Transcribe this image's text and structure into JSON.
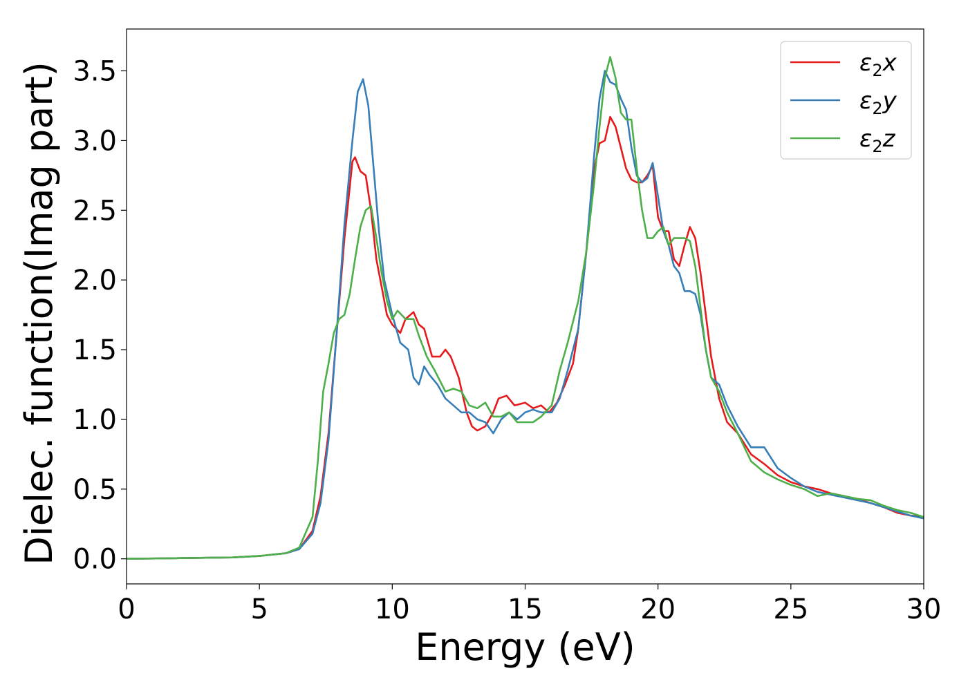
{
  "chart_data": {
    "type": "line",
    "xlabel": "Energy (eV)",
    "ylabel": "Dielec. function(Imag part)",
    "xlim": [
      0,
      30
    ],
    "ylim": [
      -0.18,
      3.8
    ],
    "xticks": [
      "0",
      "5",
      "10",
      "15",
      "20",
      "25",
      "30"
    ],
    "yticks": [
      "0.0",
      "0.5",
      "1.0",
      "1.5",
      "2.0",
      "2.5",
      "3.0",
      "3.5"
    ],
    "grid": false,
    "legend_position": "top-right",
    "series": [
      {
        "name": "ε₂x",
        "color": "#e41a1c",
        "x": [
          0,
          2,
          4,
          5,
          6,
          6.5,
          7,
          7.3,
          7.6,
          7.9,
          8.2,
          8.5,
          8.6,
          8.8,
          9.0,
          9.2,
          9.4,
          9.6,
          9.8,
          10.0,
          10.3,
          10.5,
          10.8,
          11.0,
          11.2,
          11.5,
          11.8,
          12.0,
          12.2,
          12.5,
          12.8,
          13.0,
          13.2,
          13.5,
          13.8,
          14.0,
          14.3,
          14.6,
          15.0,
          15.3,
          15.6,
          15.9,
          16.2,
          16.5,
          16.8,
          17.0,
          17.3,
          17.6,
          17.8,
          18.0,
          18.2,
          18.4,
          18.6,
          18.8,
          19.0,
          19.2,
          19.4,
          19.6,
          19.8,
          20.0,
          20.2,
          20.4,
          20.6,
          20.8,
          21.0,
          21.2,
          21.4,
          21.6,
          21.8,
          22.0,
          22.3,
          22.6,
          23.0,
          23.5,
          24.0,
          24.5,
          25.0,
          25.5,
          26.0,
          26.5,
          27.0,
          27.5,
          28.0,
          28.5,
          29.0,
          29.5,
          30.0
        ],
        "values": [
          0,
          0.005,
          0.01,
          0.02,
          0.04,
          0.07,
          0.2,
          0.45,
          0.9,
          1.6,
          2.3,
          2.85,
          2.88,
          2.78,
          2.75,
          2.5,
          2.15,
          1.95,
          1.75,
          1.68,
          1.62,
          1.72,
          1.77,
          1.68,
          1.65,
          1.45,
          1.45,
          1.5,
          1.45,
          1.3,
          1.05,
          0.95,
          0.92,
          0.95,
          1.05,
          1.15,
          1.17,
          1.1,
          1.12,
          1.08,
          1.1,
          1.05,
          1.12,
          1.25,
          1.4,
          1.65,
          2.2,
          2.8,
          2.98,
          3.0,
          3.17,
          3.1,
          2.95,
          2.8,
          2.72,
          2.7,
          2.7,
          2.75,
          2.82,
          2.45,
          2.35,
          2.35,
          2.15,
          2.1,
          2.25,
          2.38,
          2.3,
          2.05,
          1.75,
          1.45,
          1.15,
          0.98,
          0.9,
          0.75,
          0.68,
          0.6,
          0.55,
          0.52,
          0.5,
          0.47,
          0.45,
          0.43,
          0.4,
          0.37,
          0.33,
          0.31,
          0.3
        ]
      },
      {
        "name": "ε₂y",
        "color": "#377eb8",
        "x": [
          0,
          2,
          4,
          5,
          6,
          6.5,
          7,
          7.3,
          7.6,
          7.9,
          8.2,
          8.5,
          8.7,
          8.9,
          9.1,
          9.3,
          9.5,
          9.7,
          10.0,
          10.3,
          10.6,
          10.8,
          11.0,
          11.2,
          11.4,
          11.7,
          12.0,
          12.3,
          12.6,
          12.9,
          13.2,
          13.5,
          13.8,
          14.1,
          14.4,
          14.7,
          15.0,
          15.3,
          15.6,
          16.0,
          16.3,
          16.6,
          17.0,
          17.3,
          17.6,
          17.8,
          18.0,
          18.2,
          18.4,
          18.6,
          18.8,
          19.0,
          19.2,
          19.4,
          19.6,
          19.8,
          20.0,
          20.2,
          20.4,
          20.6,
          20.8,
          21.0,
          21.2,
          21.4,
          21.6,
          21.8,
          22.0,
          22.3,
          22.6,
          23.0,
          23.5,
          24.0,
          24.5,
          25.0,
          25.5,
          26.0,
          26.5,
          27.0,
          27.5,
          28.0,
          28.5,
          29.0,
          29.5,
          30.0
        ],
        "values": [
          0,
          0.005,
          0.01,
          0.02,
          0.04,
          0.07,
          0.18,
          0.4,
          0.85,
          1.6,
          2.4,
          3.0,
          3.35,
          3.44,
          3.25,
          2.8,
          2.35,
          2.0,
          1.75,
          1.55,
          1.5,
          1.3,
          1.25,
          1.38,
          1.32,
          1.25,
          1.15,
          1.1,
          1.05,
          1.05,
          1.0,
          0.98,
          0.9,
          1.0,
          1.05,
          1.0,
          1.05,
          1.07,
          1.05,
          1.05,
          1.15,
          1.35,
          1.65,
          2.2,
          2.9,
          3.3,
          3.5,
          3.42,
          3.4,
          3.3,
          3.22,
          2.95,
          2.75,
          2.7,
          2.73,
          2.84,
          2.6,
          2.35,
          2.25,
          2.1,
          2.05,
          1.92,
          1.92,
          1.9,
          1.75,
          1.5,
          1.3,
          1.25,
          1.1,
          0.95,
          0.8,
          0.8,
          0.65,
          0.58,
          0.52,
          0.48,
          0.46,
          0.44,
          0.42,
          0.4,
          0.37,
          0.34,
          0.31,
          0.29
        ]
      },
      {
        "name": "ε₂z",
        "color": "#4daf4a",
        "x": [
          0,
          2,
          4,
          5,
          6,
          6.5,
          7,
          7.2,
          7.4,
          7.6,
          7.8,
          8.0,
          8.2,
          8.4,
          8.6,
          8.8,
          9.0,
          9.2,
          9.4,
          9.6,
          9.8,
          10.0,
          10.2,
          10.5,
          10.8,
          11.0,
          11.3,
          11.6,
          12.0,
          12.3,
          12.6,
          12.9,
          13.2,
          13.5,
          13.8,
          14.1,
          14.4,
          14.7,
          15.0,
          15.3,
          15.6,
          16.0,
          16.3,
          16.6,
          17.0,
          17.3,
          17.6,
          17.8,
          18.0,
          18.2,
          18.4,
          18.6,
          18.8,
          19.0,
          19.2,
          19.4,
          19.6,
          19.8,
          20.0,
          20.2,
          20.4,
          20.6,
          20.8,
          21.0,
          21.2,
          21.4,
          21.6,
          21.8,
          22.0,
          22.3,
          22.6,
          23.0,
          23.5,
          24.0,
          24.5,
          25.0,
          25.5,
          26.0,
          26.5,
          27.0,
          27.5,
          28.0,
          28.5,
          29.0,
          29.5,
          30.0
        ],
        "values": [
          0,
          0.005,
          0.01,
          0.02,
          0.04,
          0.08,
          0.3,
          0.7,
          1.2,
          1.4,
          1.62,
          1.72,
          1.75,
          1.9,
          2.15,
          2.38,
          2.5,
          2.53,
          2.3,
          2.05,
          1.85,
          1.72,
          1.78,
          1.72,
          1.72,
          1.6,
          1.45,
          1.35,
          1.2,
          1.22,
          1.2,
          1.1,
          1.08,
          1.12,
          1.02,
          1.02,
          1.05,
          0.98,
          0.98,
          0.98,
          1.02,
          1.1,
          1.35,
          1.55,
          1.85,
          2.2,
          2.7,
          3.1,
          3.45,
          3.6,
          3.45,
          3.2,
          3.15,
          3.15,
          2.8,
          2.5,
          2.3,
          2.3,
          2.35,
          2.38,
          2.25,
          2.3,
          2.3,
          2.3,
          2.28,
          2.1,
          1.8,
          1.5,
          1.3,
          1.2,
          1.05,
          0.9,
          0.7,
          0.62,
          0.57,
          0.53,
          0.5,
          0.45,
          0.47,
          0.45,
          0.43,
          0.42,
          0.38,
          0.35,
          0.33,
          0.3
        ]
      }
    ],
    "legend": [
      {
        "base": "ε",
        "sub": "2",
        "var": "x"
      },
      {
        "base": "ε",
        "sub": "2",
        "var": "y"
      },
      {
        "base": "ε",
        "sub": "2",
        "var": "z"
      }
    ]
  }
}
